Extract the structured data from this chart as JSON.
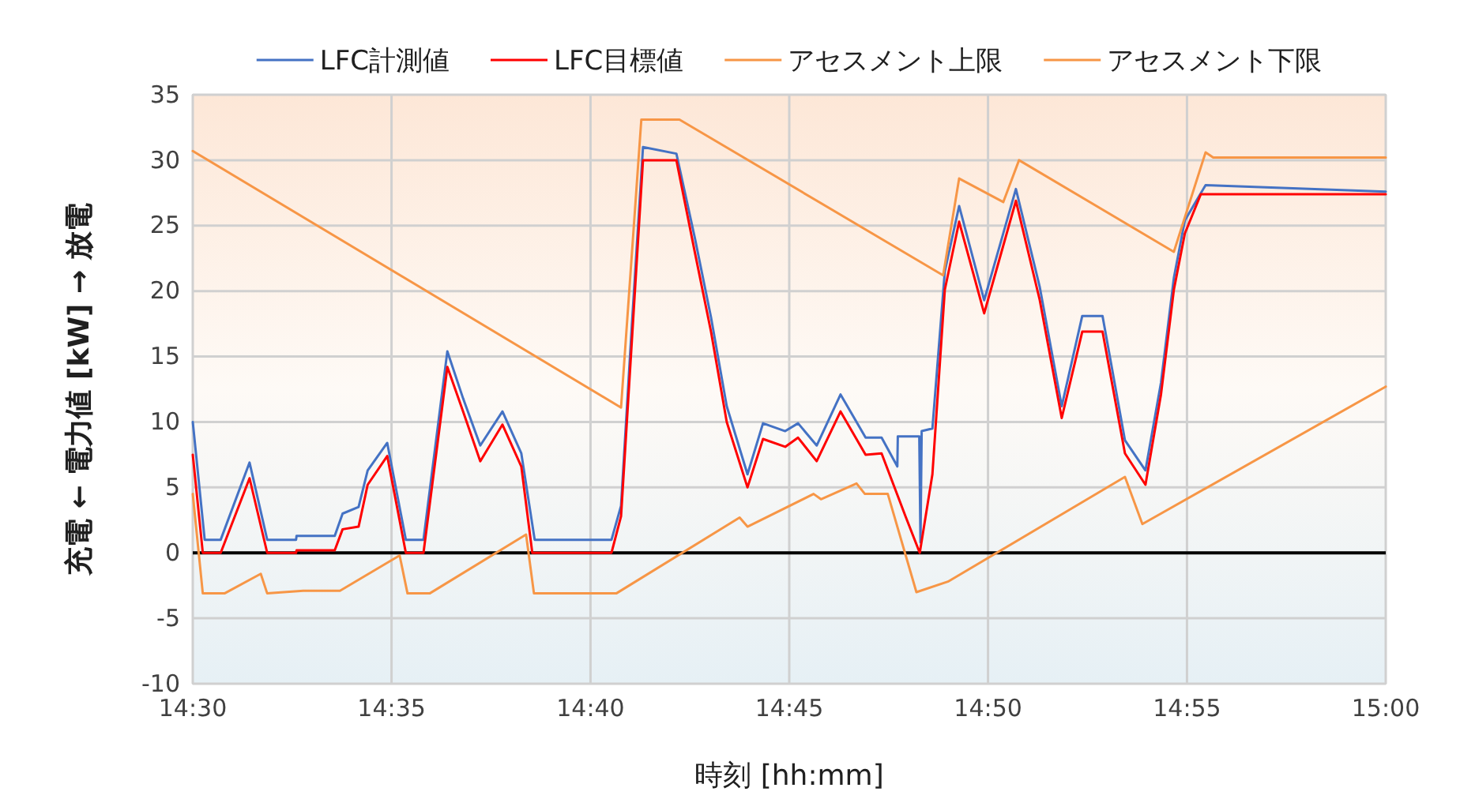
{
  "chart_data": {
    "type": "line",
    "xlabel": "時刻 [hh:mm]",
    "ylabel": "充電 ← 電力値 [kW] → 放電",
    "xlim": [
      14.5,
      15
    ],
    "xticks": [
      {
        "value": 14.5,
        "label": "14:30"
      },
      {
        "value": 14.5833,
        "label": "14:35"
      },
      {
        "value": 14.6667,
        "label": "14:40"
      },
      {
        "value": 14.75,
        "label": "14:45"
      },
      {
        "value": 14.8333,
        "label": "14:50"
      },
      {
        "value": 14.9167,
        "label": "14:55"
      },
      {
        "value": 15,
        "label": "15:00"
      }
    ],
    "ylim": [
      -10,
      35
    ],
    "yticks": [
      -10,
      -5,
      0,
      5,
      10,
      15,
      20,
      25,
      30,
      35
    ],
    "grid": true,
    "legend": "top",
    "line_style": "solid",
    "marker": "none",
    "ref_lines": [
      {
        "axis": "y",
        "value": 0,
        "color": "#000000"
      }
    ],
    "series": [
      {
        "name": "LFC計測値",
        "color": "#4472c4",
        "x": [
          14.5,
          14.505,
          14.5117,
          14.5238,
          14.5312,
          14.5433,
          14.5435,
          14.5595,
          14.5628,
          14.5695,
          14.5733,
          14.5815,
          14.5893,
          14.5967,
          14.6067,
          14.6133,
          14.6205,
          14.6298,
          14.6377,
          14.6433,
          14.6755,
          14.6795,
          14.684,
          14.6887,
          14.7027,
          14.7105,
          14.7172,
          14.7238,
          14.7325,
          14.739,
          14.7483,
          14.7537,
          14.7615,
          14.7715,
          14.782,
          14.7887,
          14.7953,
          14.7955,
          14.8045,
          14.805,
          14.8055,
          14.81,
          14.8152,
          14.8212,
          14.8317,
          14.845,
          14.855,
          14.8642,
          14.8728,
          14.8813,
          14.8907,
          14.8993,
          14.9058,
          14.9112,
          14.9158,
          14.9245,
          15
        ],
        "values": [
          10.0,
          1.0,
          1.0,
          6.9,
          1.0,
          1.0,
          1.3,
          1.3,
          3.0,
          3.5,
          6.3,
          8.4,
          1.0,
          1.0,
          15.4,
          11.8,
          8.2,
          10.8,
          7.6,
          1.0,
          1.0,
          3.6,
          17.3,
          31.0,
          30.5,
          24.0,
          18.0,
          11.2,
          6.0,
          9.9,
          9.3,
          9.9,
          8.2,
          12.1,
          8.8,
          8.8,
          6.6,
          8.9,
          8.9,
          0.8,
          9.3,
          9.5,
          21.5,
          26.5,
          19.3,
          27.8,
          20.3,
          11.2,
          18.1,
          18.1,
          8.6,
          6.3,
          13.0,
          21.0,
          25.4,
          28.1,
          27.6
        ]
      },
      {
        "name": "LFC目標値",
        "color": "#ff0000",
        "x": [
          14.5,
          14.5042,
          14.5117,
          14.5238,
          14.5312,
          14.5433,
          14.5435,
          14.5595,
          14.5628,
          14.5695,
          14.5733,
          14.5815,
          14.5893,
          14.5967,
          14.6067,
          14.6133,
          14.6205,
          14.6298,
          14.6377,
          14.6423,
          14.6755,
          14.6795,
          14.684,
          14.6887,
          14.7027,
          14.7105,
          14.7172,
          14.7238,
          14.7325,
          14.739,
          14.7483,
          14.7537,
          14.7615,
          14.7715,
          14.782,
          14.7887,
          14.7987,
          14.8047,
          14.81,
          14.8152,
          14.8212,
          14.8317,
          14.845,
          14.855,
          14.8642,
          14.8728,
          14.8813,
          14.8907,
          14.8993,
          14.9058,
          14.9112,
          14.9158,
          14.9225,
          15
        ],
        "values": [
          7.5,
          0,
          0,
          5.7,
          0,
          0,
          0.2,
          0.2,
          1.8,
          2.0,
          5.2,
          7.4,
          0,
          0,
          14.2,
          10.8,
          7.0,
          9.8,
          6.6,
          0,
          0,
          2.8,
          16.1,
          30,
          30,
          22.9,
          16.9,
          10.0,
          5.0,
          8.7,
          8.1,
          8.8,
          7.0,
          10.8,
          7.5,
          7.6,
          2.8,
          0,
          6.0,
          20.1,
          25.3,
          18.3,
          26.9,
          19.3,
          10.3,
          16.9,
          16.9,
          7.6,
          5.2,
          12.1,
          20.1,
          24.4,
          27.4,
          27.4
        ]
      },
      {
        "name": "アセスメント上限",
        "color": "#f79646",
        "x": [
          14.5,
          14.6795,
          14.688,
          14.704,
          14.8145,
          14.8212,
          14.8397,
          14.8463,
          14.9112,
          14.9245,
          14.9277,
          15
        ],
        "values": [
          30.7,
          11.1,
          33.1,
          33.1,
          21.2,
          28.6,
          26.8,
          30.0,
          23.0,
          30.6,
          30.2,
          30.2
        ]
      },
      {
        "name": "アセスメント下限",
        "color": "#f79646",
        "x": [
          14.5,
          14.5042,
          14.5133,
          14.5285,
          14.5312,
          14.5463,
          14.5617,
          14.5867,
          14.59,
          14.5993,
          14.6397,
          14.643,
          14.6775,
          14.7292,
          14.7325,
          14.7602,
          14.7633,
          14.7782,
          14.7817,
          14.7913,
          14.8033,
          14.8165,
          14.8907,
          14.898,
          15
        ],
        "values": [
          4.5,
          -3.1,
          -3.1,
          -1.6,
          -3.1,
          -2.9,
          -2.9,
          -0.2,
          -3.1,
          -3.1,
          1.4,
          -3.1,
          -3.1,
          2.7,
          2.0,
          4.5,
          4.1,
          5.3,
          4.5,
          4.5,
          -3.0,
          -2.2,
          5.8,
          2.2,
          12.7
        ]
      }
    ]
  }
}
